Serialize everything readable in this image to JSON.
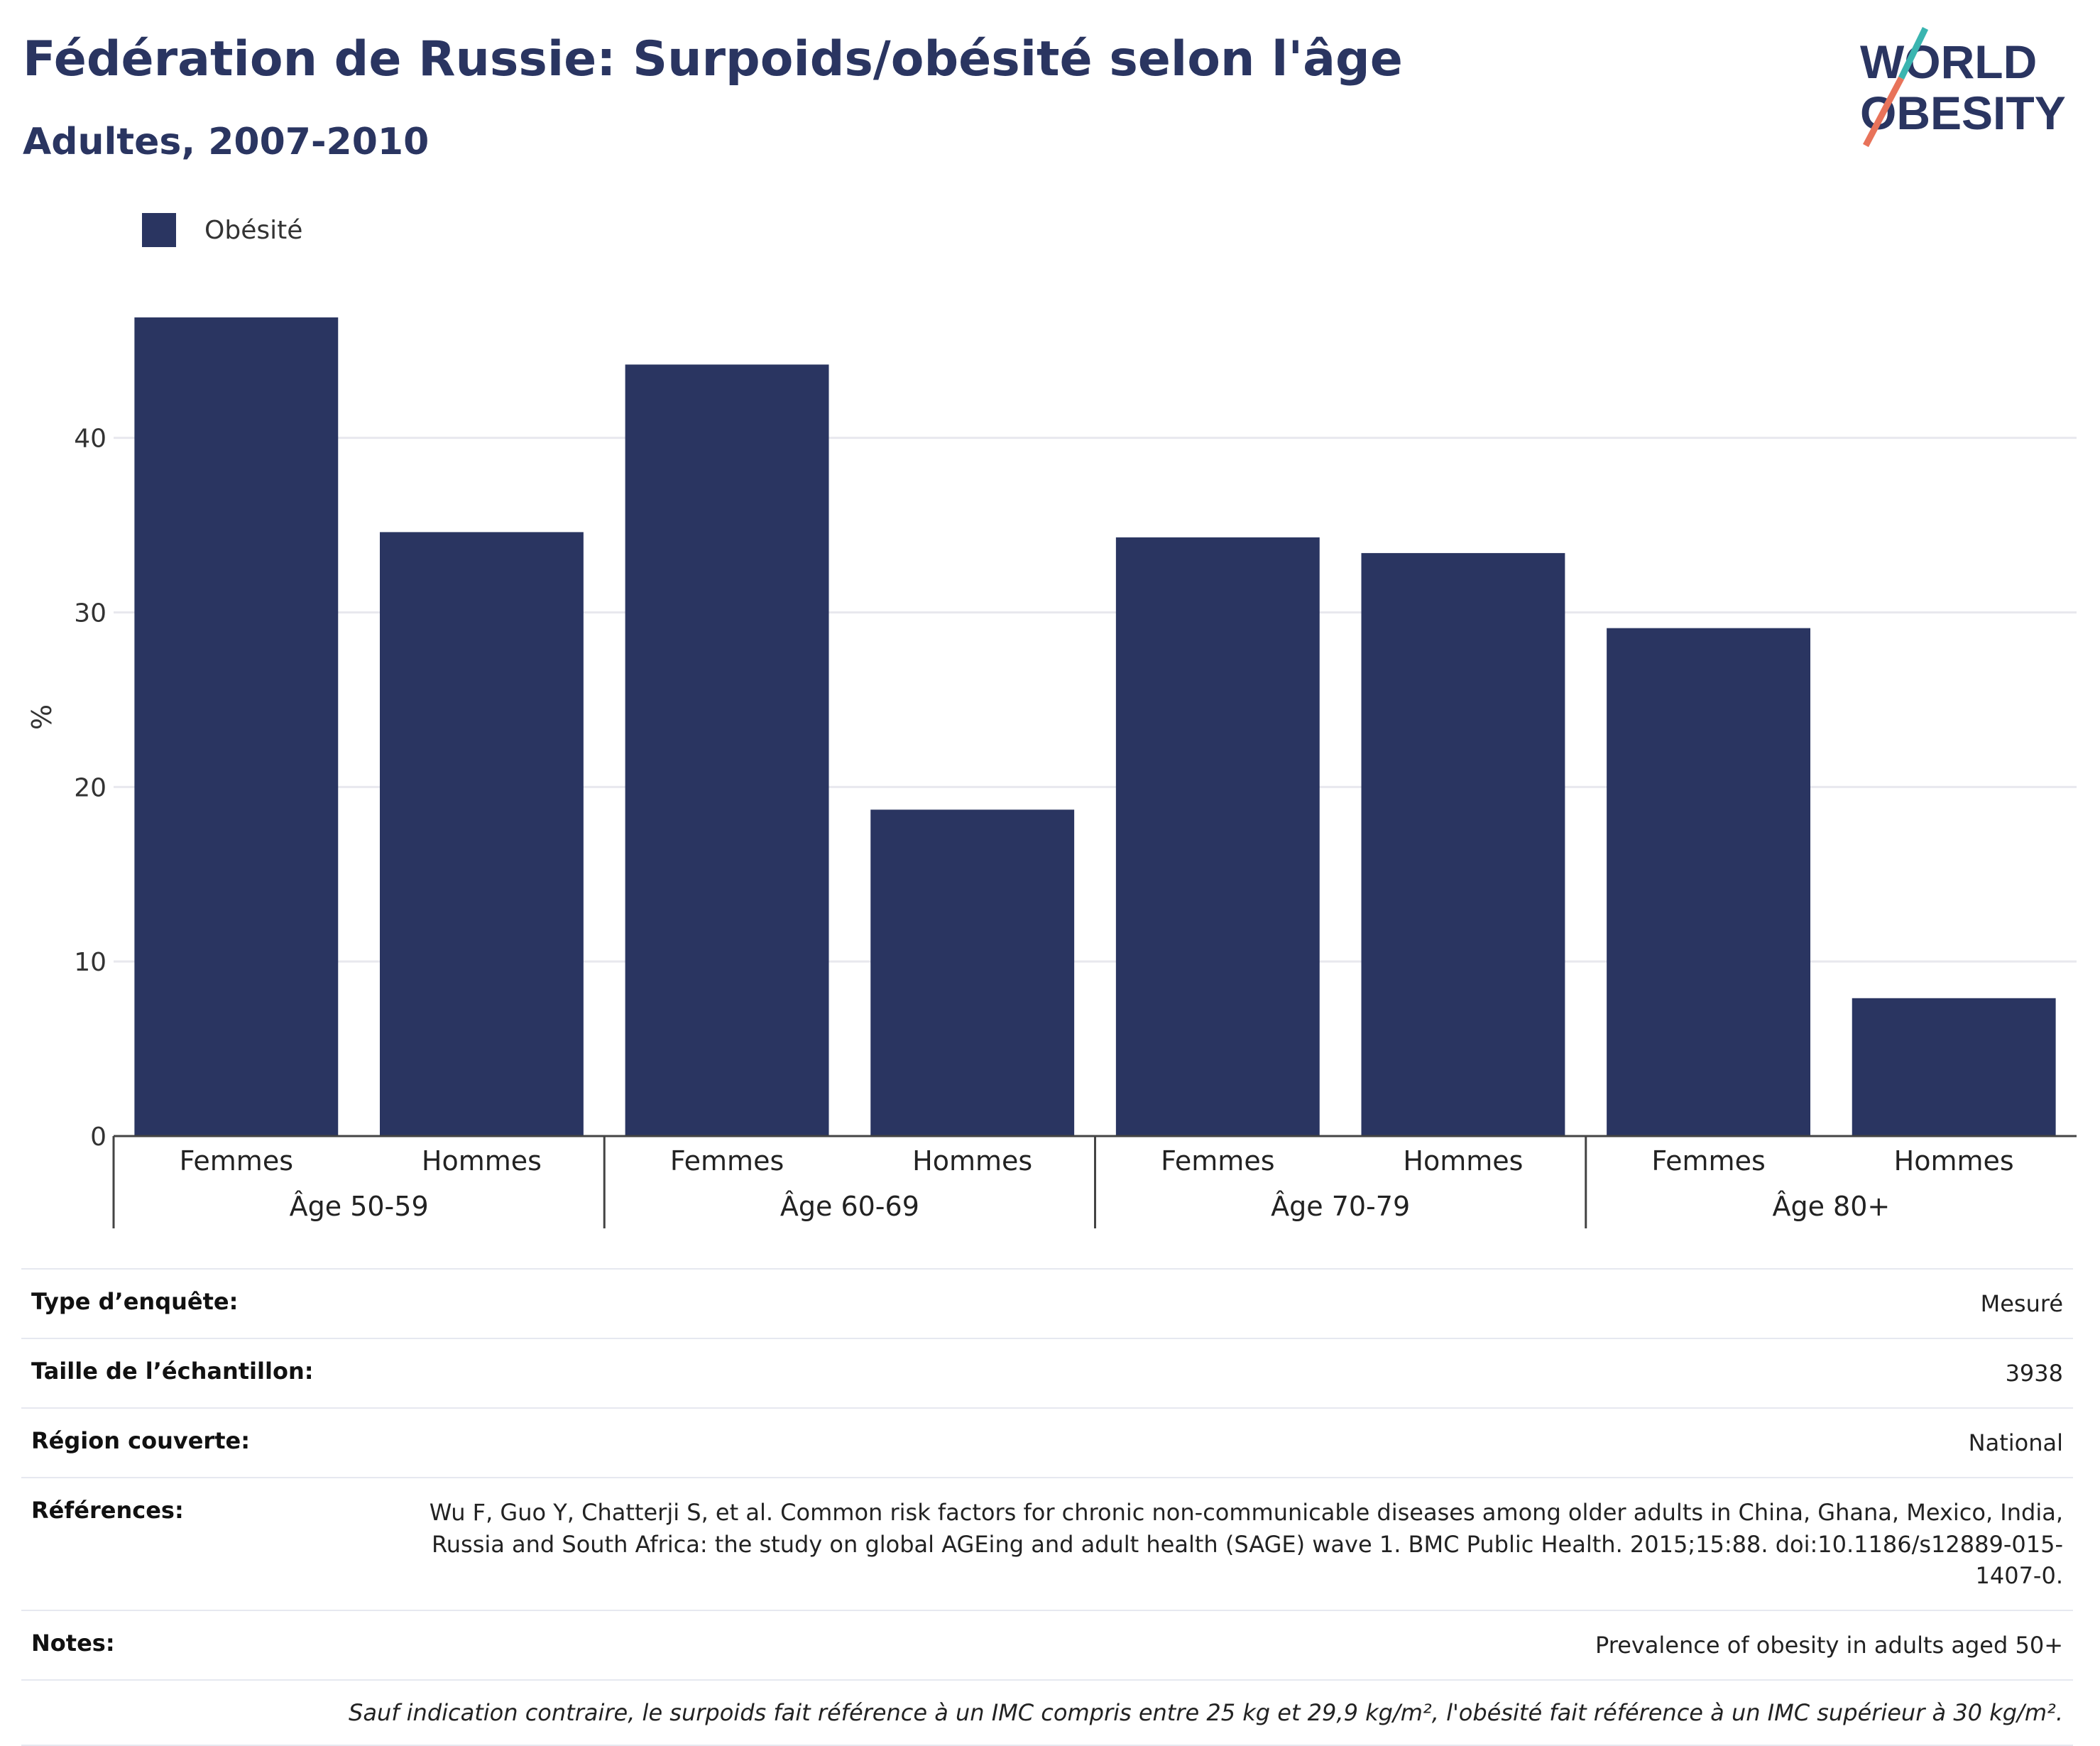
{
  "header": {
    "title": "Fédération de Russie: Surpoids/obésité selon l'âge",
    "subtitle": "Adultes, 2007-2010"
  },
  "logo": {
    "line1": "WORLD",
    "line2": "OBESITY"
  },
  "colors": {
    "bar": "#2a3561",
    "title": "#2a3561",
    "grid": "#e8e8ee",
    "logo_teal": "#3ab5b0",
    "logo_red": "#e8735a"
  },
  "legend": {
    "items": [
      {
        "label": "Obésité",
        "color": "#2a3561"
      }
    ]
  },
  "chart_data": {
    "type": "bar",
    "ylabel": "%",
    "ylim": [
      0,
      48
    ],
    "yticks": [
      0,
      10,
      20,
      30,
      40
    ],
    "grid": true,
    "groups": [
      {
        "label": "Âge 50-59",
        "categories": [
          "Femmes",
          "Hommes"
        ],
        "values": [
          46.9,
          34.6
        ]
      },
      {
        "label": "Âge 60-69",
        "categories": [
          "Femmes",
          "Hommes"
        ],
        "values": [
          44.2,
          18.7
        ]
      },
      {
        "label": "Âge 70-79",
        "categories": [
          "Femmes",
          "Hommes"
        ],
        "values": [
          34.3,
          33.4
        ]
      },
      {
        "label": "Âge 80+",
        "categories": [
          "Femmes",
          "Hommes"
        ],
        "values": [
          29.1,
          7.9
        ]
      }
    ],
    "series": [
      {
        "name": "Obésité"
      }
    ]
  },
  "info": {
    "survey_type_label": "Type d’enquête:",
    "survey_type_value": "Mesuré",
    "sample_size_label": "Taille de l’échantillon:",
    "sample_size_value": "3938",
    "region_label": "Région couverte:",
    "region_value": "National",
    "references_label": "Références:",
    "references_value": "Wu F, Guo Y, Chatterji S, et al. Common risk factors for chronic non-communicable diseases among older adults in China, Ghana, Mexico, India, Russia and South Africa: the study on global AGEing and adult health (SAGE) wave 1. BMC Public Health. 2015;15:88. doi:10.1186/s12889-015-1407-0.",
    "notes_label": "Notes:",
    "notes_value": "Prevalence of obesity in adults aged 50+",
    "footnote": "Sauf indication contraire, le surpoids fait référence à un IMC compris entre 25 kg et 29,9 kg/m², l'obésité fait référence à un IMC supérieur à 30 kg/m²."
  }
}
